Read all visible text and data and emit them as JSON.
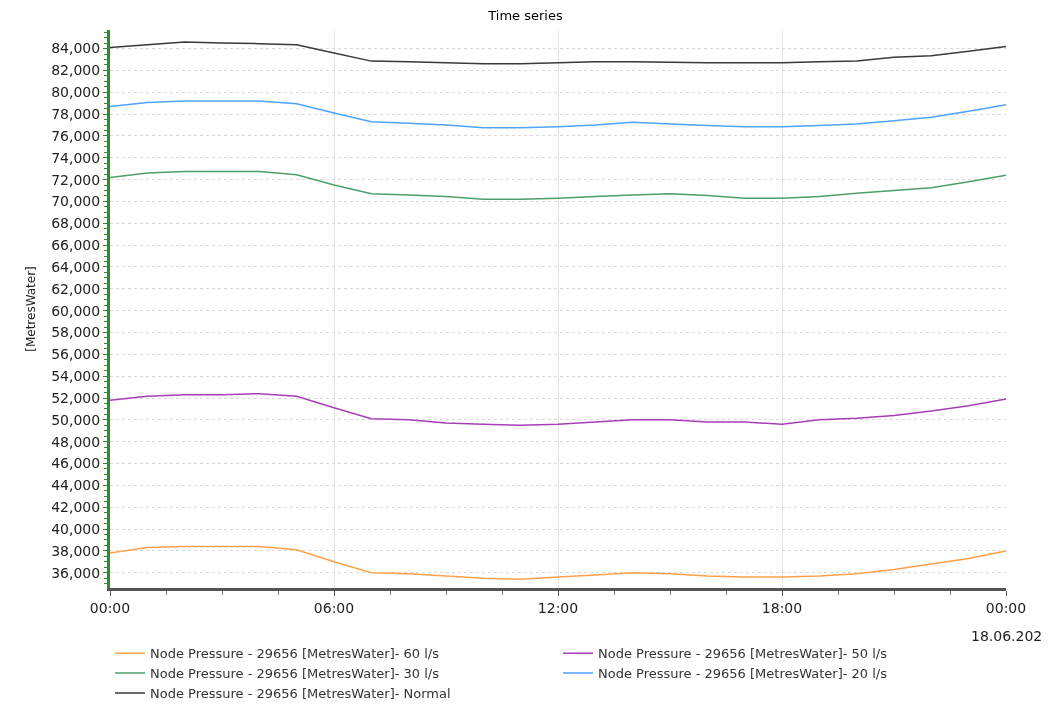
{
  "chart_data": {
    "type": "line",
    "title": "Time series",
    "ylabel": "[MetresWater]",
    "x": [
      0,
      1,
      2,
      3,
      4,
      5,
      6,
      7,
      8,
      9,
      10,
      11,
      12,
      13,
      14,
      15,
      16,
      17,
      18,
      19,
      20,
      21,
      22,
      23,
      24
    ],
    "xlim": [
      0,
      24
    ],
    "xticks": [
      {
        "value": 0,
        "label": "00:00"
      },
      {
        "value": 6,
        "label": "06:00"
      },
      {
        "value": 12,
        "label": "12:00"
      },
      {
        "value": 18,
        "label": "18:00"
      },
      {
        "value": 24,
        "label": "00:00"
      }
    ],
    "annotations": [
      "18.06.202"
    ],
    "ylim": [
      34600,
      85700
    ],
    "yticks": [
      {
        "value": 36000,
        "label": "36,000"
      },
      {
        "value": 38000,
        "label": "38,000"
      },
      {
        "value": 40000,
        "label": "40,000"
      },
      {
        "value": 42000,
        "label": "42,000"
      },
      {
        "value": 44000,
        "label": "44,000"
      },
      {
        "value": 46000,
        "label": "46,000"
      },
      {
        "value": 48000,
        "label": "48,000"
      },
      {
        "value": 50000,
        "label": "50,000"
      },
      {
        "value": 52000,
        "label": "52,000"
      },
      {
        "value": 54000,
        "label": "54,000"
      },
      {
        "value": 56000,
        "label": "56,000"
      },
      {
        "value": 58000,
        "label": "58,000"
      },
      {
        "value": 60000,
        "label": "60,000"
      },
      {
        "value": 62000,
        "label": "62,000"
      },
      {
        "value": 64000,
        "label": "64,000"
      },
      {
        "value": 66000,
        "label": "66,000"
      },
      {
        "value": 68000,
        "label": "68,000"
      },
      {
        "value": 70000,
        "label": "70,000"
      },
      {
        "value": 72000,
        "label": "72,000"
      },
      {
        "value": 74000,
        "label": "74,000"
      },
      {
        "value": 76000,
        "label": "76,000"
      },
      {
        "value": 78000,
        "label": "78,000"
      },
      {
        "value": 80000,
        "label": "80,000"
      },
      {
        "value": 82000,
        "label": "82,000"
      },
      {
        "value": 84000,
        "label": "84,000"
      }
    ],
    "grid": true,
    "legend": "bottom",
    "marker": "none",
    "line_style": "solid",
    "series": [
      {
        "name": "Node Pressure - 29656 [MetresWater]- 60 l/s",
        "color": "#ffa04a",
        "values": [
          37800,
          38300,
          38400,
          38400,
          38400,
          38100,
          37000,
          36000,
          35900,
          35700,
          35500,
          35400,
          35600,
          35800,
          36000,
          35900,
          35700,
          35600,
          35600,
          35700,
          35900,
          36300,
          36800,
          37300,
          38000
        ]
      },
      {
        "name": "Node Pressure - 29656 [MetresWater]- 50 l/s",
        "color": "#a63fb5",
        "values": [
          51800,
          52150,
          52300,
          52300,
          52400,
          52150,
          51100,
          50100,
          50000,
          49700,
          49600,
          49500,
          49600,
          49800,
          50000,
          50000,
          49800,
          49800,
          49600,
          50000,
          50150,
          50400,
          50800,
          51300,
          51900
        ]
      },
      {
        "name": "Node Pressure - 29656 [MetresWater]- 30 l/s",
        "color": "#4e9e6a",
        "values": [
          72200,
          72600,
          72750,
          72750,
          72750,
          72450,
          71500,
          70700,
          70600,
          70450,
          70200,
          70200,
          70300,
          70450,
          70600,
          70700,
          70550,
          70300,
          70300,
          70450,
          70750,
          71000,
          71250,
          71800,
          72400
        ]
      },
      {
        "name": "Node Pressure - 29656 [MetresWater]- 20 l/s",
        "color": "#4da3ff",
        "values": [
          78700,
          79050,
          79200,
          79200,
          79200,
          78950,
          78100,
          77300,
          77150,
          77000,
          76750,
          76750,
          76850,
          77000,
          77250,
          77100,
          76950,
          76850,
          76850,
          76950,
          77100,
          77400,
          77700,
          78250,
          78850
        ]
      },
      {
        "name": "Node Pressure - 29656 [MetresWater]- Normal",
        "color": "#3a3a3a",
        "values": [
          84100,
          84350,
          84600,
          84500,
          84450,
          84350,
          83600,
          82850,
          82800,
          82700,
          82600,
          82600,
          82700,
          82800,
          82800,
          82750,
          82700,
          82700,
          82700,
          82800,
          82850,
          83200,
          83350,
          83750,
          84200
        ]
      }
    ]
  }
}
